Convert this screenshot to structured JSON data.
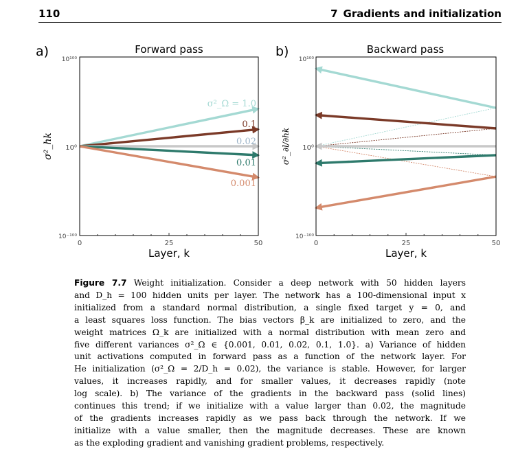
{
  "header": {
    "page_number": "110",
    "chapter_number": "7",
    "chapter_title": "Gradients and initialization"
  },
  "panels": [
    {
      "label": "a)",
      "title": "Forward pass",
      "xlabel": "Layer, k",
      "ylabel": "σ²_hk",
      "yticks": [
        "10¹⁰⁰",
        "10⁰",
        "10⁻¹⁰⁰"
      ],
      "xticks": [
        "0",
        "25",
        "50"
      ]
    },
    {
      "label": "b)",
      "title": "Backward pass",
      "xlabel": "Layer, k",
      "ylabel": "σ²_∂l/∂hk",
      "yticks": [
        "10¹⁰⁰",
        "10⁰",
        "10⁻¹⁰⁰"
      ],
      "xticks": [
        "0",
        "25",
        "50"
      ]
    }
  ],
  "chart_data": [
    {
      "type": "line",
      "title": "Forward pass",
      "xlabel": "Layer, k",
      "ylabel": "σ²_hk",
      "y_scale": "log",
      "xlim": [
        0,
        50
      ],
      "ylim_log10": [
        -100,
        100
      ],
      "series": [
        {
          "name": "σ²_Ω = 1.0",
          "color": "#a4d9d3",
          "x": [
            0,
            50
          ],
          "log10_y": [
            0,
            42
          ]
        },
        {
          "name": "0.1",
          "color": "#7b3a28",
          "x": [
            0,
            50
          ],
          "log10_y": [
            0,
            19
          ]
        },
        {
          "name": "0.02",
          "color": "#c8c8c8",
          "x": [
            0,
            50
          ],
          "log10_y": [
            0,
            0
          ]
        },
        {
          "name": "0.01",
          "color": "#2e7a6c",
          "x": [
            0,
            50
          ],
          "log10_y": [
            0,
            -10
          ]
        },
        {
          "name": "0.001",
          "color": "#d48a6c",
          "x": [
            0,
            50
          ],
          "log10_y": [
            0,
            -35
          ]
        }
      ],
      "annotations": [
        {
          "text": "σ²_Ω = 1.0",
          "color": "#a4d9d3"
        },
        {
          "text": "0.1",
          "color": "#7b3a28"
        },
        {
          "text": "0.02",
          "color": "#9cb4c8"
        },
        {
          "text": "0.01",
          "color": "#2e7a6c"
        },
        {
          "text": "0.001",
          "color": "#d48a6c"
        }
      ]
    },
    {
      "type": "line",
      "title": "Backward pass",
      "xlabel": "Layer, k",
      "ylabel": "σ²_∂l/∂hk",
      "y_scale": "log",
      "xlim": [
        0,
        50
      ],
      "ylim_log10": [
        -100,
        100
      ],
      "series": [
        {
          "color": "#a4d9d3",
          "x": [
            50,
            0
          ],
          "log10_y": [
            43,
            87
          ]
        },
        {
          "color": "#7b3a28",
          "x": [
            50,
            0
          ],
          "log10_y": [
            20,
            35
          ]
        },
        {
          "color": "#c8c8c8",
          "x": [
            50,
            0
          ],
          "log10_y": [
            0,
            0
          ]
        },
        {
          "color": "#2e7a6c",
          "x": [
            50,
            0
          ],
          "log10_y": [
            -10,
            -19
          ]
        },
        {
          "color": "#d48a6c",
          "x": [
            50,
            0
          ],
          "log10_y": [
            -34,
            -69
          ]
        }
      ],
      "forward_dashed": [
        {
          "color": "#a4d9d3",
          "x": [
            0,
            50
          ],
          "log10_y": [
            0,
            43
          ]
        },
        {
          "color": "#7b3a28",
          "x": [
            0,
            50
          ],
          "log10_y": [
            0,
            20
          ]
        },
        {
          "color": "#9a9a9a",
          "x": [
            0,
            50
          ],
          "log10_y": [
            0,
            0
          ]
        },
        {
          "color": "#2e7a6c",
          "x": [
            0,
            50
          ],
          "log10_y": [
            0,
            -10
          ]
        },
        {
          "color": "#d48a6c",
          "x": [
            0,
            50
          ],
          "log10_y": [
            0,
            -34
          ]
        }
      ]
    }
  ],
  "caption": {
    "label": "Figure 7.7",
    "lines": [
      " Weight initialization. Consider a deep network with 50 hidden layers",
      "and D_h = 100 hidden units per layer. The network has a 100-dimensional input x",
      "initialized from a standard normal distribution, a single fixed target y = 0, and",
      "a least squares loss function. The bias vectors β_k are initialized to zero, and the",
      "weight matrices Ω_k are initialized with a normal distribution with mean zero and",
      "five different variances σ²_Ω ∈ {0.001, 0.01, 0.02, 0.1, 1.0}. a) Variance of hidden",
      "unit activations computed in forward pass as a function of the network layer. For",
      "He initialization (σ²_Ω = 2/D_h = 0.02), the variance is stable. However, for larger",
      "values, it increases rapidly, and for smaller values, it decreases rapidly (note",
      "log scale). b) The variance of the gradients in the backward pass (solid lines)",
      "continues this trend; if we initialize with a value larger than 0.02, the magnitude",
      "of the gradients increases rapidly as we pass back through the network. If we",
      "initialize with a value smaller, then the magnitude decreases. These are known",
      "as the exploding gradient and vanishing gradient problems, respectively."
    ]
  }
}
